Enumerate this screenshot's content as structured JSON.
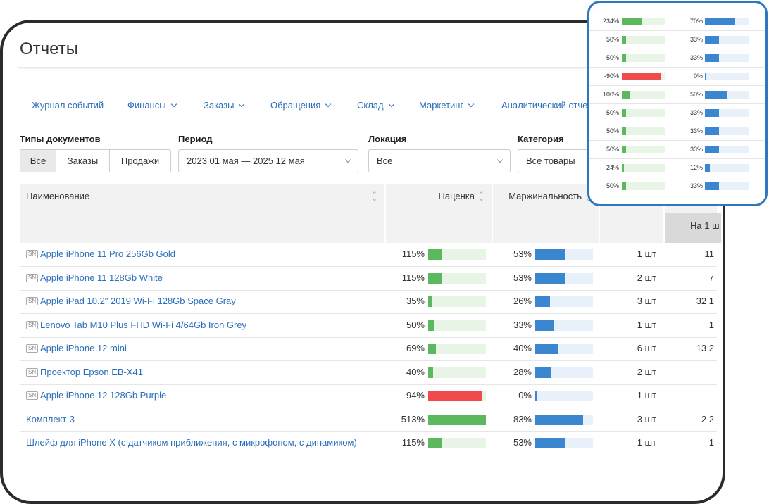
{
  "header": {
    "title": "Отчеты"
  },
  "nav": [
    "Журнал событий",
    "Финансы",
    "Заказы",
    "Обращения",
    "Склад",
    "Маркетинг",
    "Аналитический отче"
  ],
  "filters": {
    "doc_types": {
      "label": "Типы документов",
      "options": [
        "Все",
        "Заказы",
        "Продажи"
      ]
    },
    "period": {
      "label": "Период",
      "value": "2023 01 мая — 2025 12 мая"
    },
    "location": {
      "label": "Локация",
      "value": "Все"
    },
    "category": {
      "label": "Категория",
      "value": "Все товары"
    }
  },
  "table": {
    "sn_label": "SN",
    "headers": {
      "name": "Наименование",
      "markup": "Наценка",
      "margin": "Маржинальность",
      "per_unit": "На 1 ш"
    },
    "rows": [
      {
        "sn": true,
        "name": "Apple iPhone 11 Pro 256Gb Gold",
        "markup": {
          "value": 115,
          "label": "115%"
        },
        "margin": {
          "value": 53,
          "label": "53%"
        },
        "qty": "1 шт",
        "extra": "11"
      },
      {
        "sn": true,
        "name": "Apple iPhone 11 128Gb White",
        "markup": {
          "value": 115,
          "label": "115%"
        },
        "margin": {
          "value": 53,
          "label": "53%"
        },
        "qty": "2 шт",
        "extra": "7"
      },
      {
        "sn": true,
        "name": "Apple iPad 10.2\" 2019 Wi-Fi 128Gb Space Gray",
        "markup": {
          "value": 35,
          "label": "35%"
        },
        "margin": {
          "value": 26,
          "label": "26%"
        },
        "qty": "3 шт",
        "extra": "32 1"
      },
      {
        "sn": true,
        "name": "Lenovo Tab M10 Plus FHD Wi-Fi 4/64Gb Iron Grey",
        "markup": {
          "value": 50,
          "label": "50%"
        },
        "margin": {
          "value": 33,
          "label": "33%"
        },
        "qty": "1 шт",
        "extra": "1"
      },
      {
        "sn": true,
        "name": "Apple iPhone 12 mini",
        "markup": {
          "value": 69,
          "label": "69%"
        },
        "margin": {
          "value": 40,
          "label": "40%"
        },
        "qty": "6 шт",
        "extra": "13 2"
      },
      {
        "sn": true,
        "name": "Проектор Epson EB-X41",
        "markup": {
          "value": 40,
          "label": "40%"
        },
        "margin": {
          "value": 28,
          "label": "28%"
        },
        "qty": "2 шт",
        "extra": null
      },
      {
        "sn": true,
        "name": "Apple iPhone 12 128Gb Purple",
        "markup": {
          "value": -94,
          "label": "-94%"
        },
        "margin": {
          "value": 0,
          "label": "0%"
        },
        "qty": "1 шт",
        "extra": null
      },
      {
        "sn": false,
        "name": "Комплект-3",
        "markup": {
          "value": 513,
          "label": "513%"
        },
        "margin": {
          "value": 83,
          "label": "83%"
        },
        "qty": "3 шт",
        "extra": "2 2"
      },
      {
        "sn": false,
        "name": "Шлейф для iPhone X (с датчиком приближения, с микрофоном, с динамиком)",
        "markup": {
          "value": 115,
          "label": "115%"
        },
        "margin": {
          "value": 53,
          "label": "53%"
        },
        "qty": "1 шт",
        "extra": "1"
      }
    ]
  },
  "zoom": {
    "rows": [
      {
        "markup": {
          "value": 234,
          "label": "234%"
        },
        "margin": {
          "value": 70,
          "label": "70%"
        }
      },
      {
        "markup": {
          "value": 50,
          "label": "50%"
        },
        "margin": {
          "value": 33,
          "label": "33%"
        }
      },
      {
        "markup": {
          "value": 50,
          "label": "50%"
        },
        "margin": {
          "value": 33,
          "label": "33%"
        }
      },
      {
        "markup": {
          "value": -90,
          "label": "-90%"
        },
        "margin": {
          "value": 0,
          "label": "0%"
        }
      },
      {
        "markup": {
          "value": 100,
          "label": "100%"
        },
        "margin": {
          "value": 50,
          "label": "50%"
        }
      },
      {
        "markup": {
          "value": 50,
          "label": "50%"
        },
        "margin": {
          "value": 33,
          "label": "33%"
        }
      },
      {
        "markup": {
          "value": 50,
          "label": "50%"
        },
        "margin": {
          "value": 33,
          "label": "33%"
        }
      },
      {
        "markup": {
          "value": 50,
          "label": "50%"
        },
        "margin": {
          "value": 33,
          "label": "33%"
        }
      },
      {
        "markup": {
          "value": 24,
          "label": "24%"
        },
        "margin": {
          "value": 12,
          "label": "12%"
        }
      },
      {
        "markup": {
          "value": 50,
          "label": "50%"
        },
        "margin": {
          "value": 33,
          "label": "33%"
        }
      }
    ]
  }
}
